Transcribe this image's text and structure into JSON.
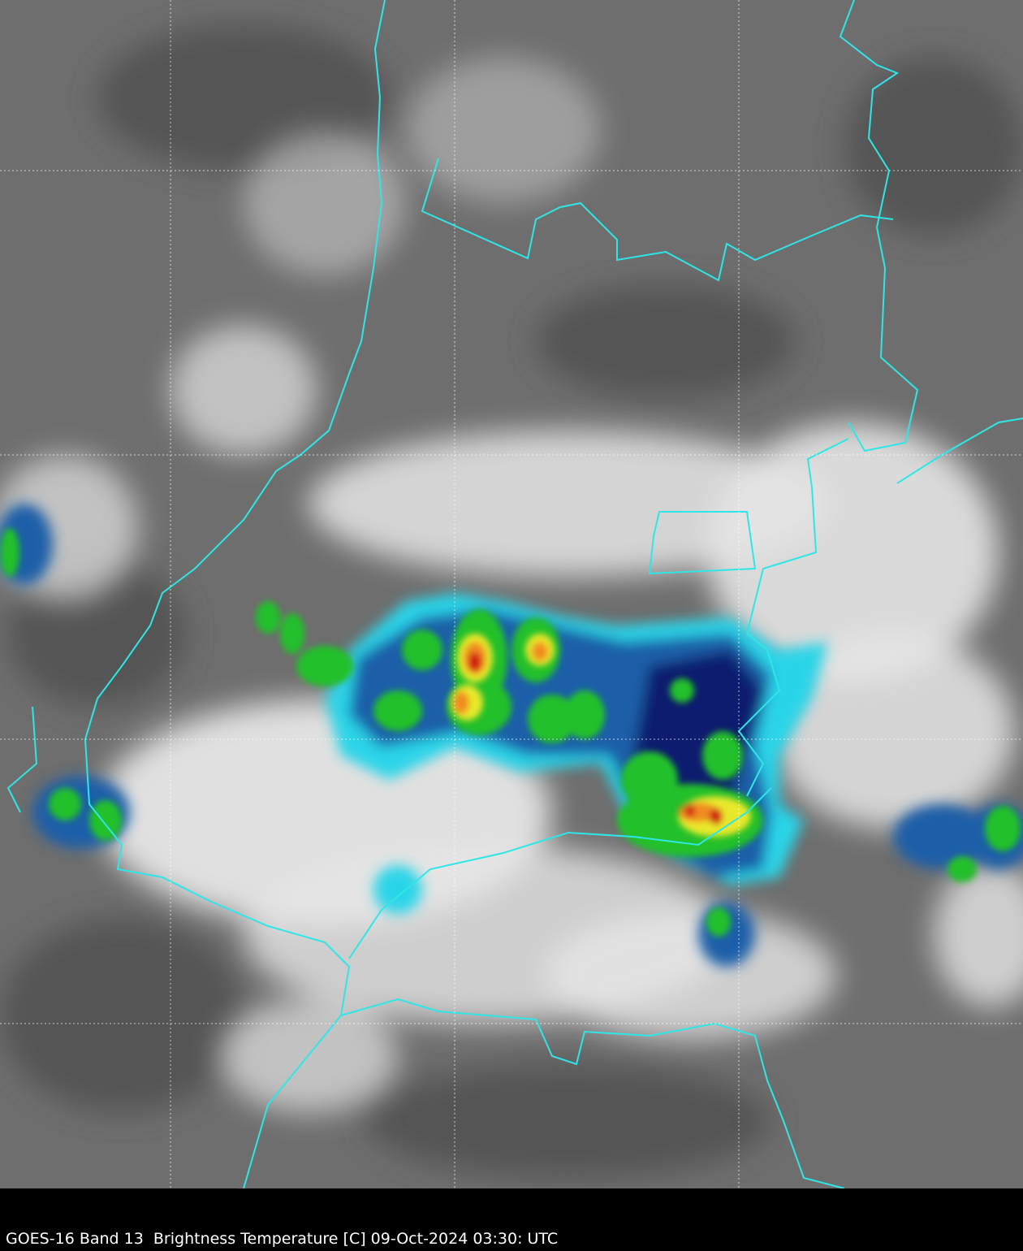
{
  "caption": "GOES-16 Band 13  Brightness Temperature [C] 09-Oct-2024 03:30: UTC",
  "colors": {
    "background_ground": "#6e6e6e",
    "cloud_white": "#f2f2f2",
    "border_line": "#2fe6e6",
    "gridline": "#ffffff",
    "cold_cyan": "#2ad4e8",
    "cold_blue": "#1f5fa8",
    "deep_navy": "#0a1e6e",
    "convective_green": "#22c02a",
    "convective_yellow": "#e8e82a",
    "convective_orange": "#f08c20",
    "convective_red": "#d01818",
    "caption_bar": "#000000",
    "caption_text": "#ffffff"
  },
  "layers": [
    "infrared-cloud-imagery",
    "political-borders",
    "lat-lon-gridlines"
  ]
}
